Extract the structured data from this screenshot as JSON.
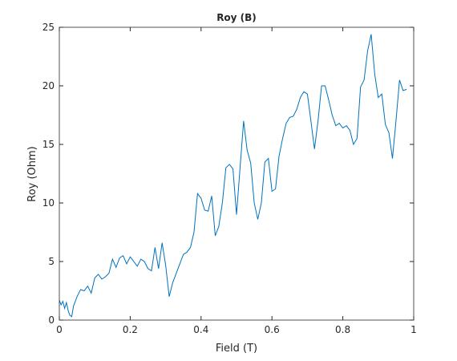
{
  "chart_data": {
    "type": "line",
    "title": "Roy (B)",
    "x_label": "Field (T)",
    "y_label": "Roy (Ohm)",
    "x": [
      0,
      0.005,
      0.01,
      0.015,
      0.02,
      0.025,
      0.03,
      0.035,
      0.04,
      0.05,
      0.06,
      0.07,
      0.08,
      0.09,
      0.1,
      0.11,
      0.12,
      0.13,
      0.14,
      0.15,
      0.16,
      0.17,
      0.18,
      0.19,
      0.2,
      0.21,
      0.22,
      0.23,
      0.24,
      0.25,
      0.26,
      0.27,
      0.28,
      0.29,
      0.3,
      0.31,
      0.32,
      0.33,
      0.34,
      0.35,
      0.36,
      0.37,
      0.38,
      0.39,
      0.4,
      0.41,
      0.42,
      0.43,
      0.44,
      0.45,
      0.46,
      0.47,
      0.48,
      0.49,
      0.5,
      0.51,
      0.52,
      0.53,
      0.54,
      0.55,
      0.56,
      0.57,
      0.58,
      0.59,
      0.6,
      0.61,
      0.62,
      0.63,
      0.64,
      0.65,
      0.66,
      0.67,
      0.68,
      0.69,
      0.7,
      0.71,
      0.72,
      0.73,
      0.74,
      0.75,
      0.76,
      0.77,
      0.78,
      0.79,
      0.8,
      0.81,
      0.82,
      0.83,
      0.84,
      0.85,
      0.86,
      0.87,
      0.88,
      0.89,
      0.9,
      0.91,
      0.92,
      0.93,
      0.94,
      0.95,
      0.96,
      0.97,
      0.98
    ],
    "series": [
      {
        "color": "#0072bd",
        "values": [
          1.7,
          1.3,
          1.6,
          1.0,
          1.5,
          0.8,
          0.4,
          0.3,
          1.2,
          2.0,
          2.6,
          2.5,
          2.9,
          2.3,
          3.6,
          3.9,
          3.5,
          3.7,
          4.0,
          5.2,
          4.5,
          5.3,
          5.5,
          4.8,
          5.4,
          5.0,
          4.6,
          5.2,
          5.0,
          4.4,
          4.2,
          6.2,
          4.4,
          6.6,
          4.7,
          2.0,
          3.2,
          4.0,
          4.8,
          5.6,
          5.8,
          6.2,
          7.5,
          10.8,
          10.4,
          9.4,
          9.3,
          10.6,
          7.2,
          8.0,
          10.0,
          13.0,
          13.3,
          12.9,
          9.0,
          13.0,
          17.0,
          14.5,
          13.4,
          10.0,
          8.6,
          10.0,
          13.5,
          13.8,
          11.0,
          11.2,
          14.0,
          15.5,
          16.8,
          17.3,
          17.4,
          18.0,
          19.0,
          19.5,
          19.3,
          17.0,
          14.6,
          17.0,
          20.0,
          20.0,
          18.8,
          17.5,
          16.6,
          16.8,
          16.4,
          16.6,
          16.2,
          15.0,
          15.5,
          19.9,
          20.5,
          23.0,
          24.4,
          21.0,
          19.0,
          19.3,
          16.7,
          16.0,
          13.8,
          17.0,
          20.5,
          19.6,
          19.7
        ]
      }
    ],
    "xlim": [
      0,
      1
    ],
    "xticks": [
      0,
      0.2,
      0.4,
      0.6,
      0.8,
      1
    ],
    "ylim": [
      0,
      25
    ],
    "yticks": [
      0,
      5,
      10,
      15,
      20,
      25
    ]
  }
}
